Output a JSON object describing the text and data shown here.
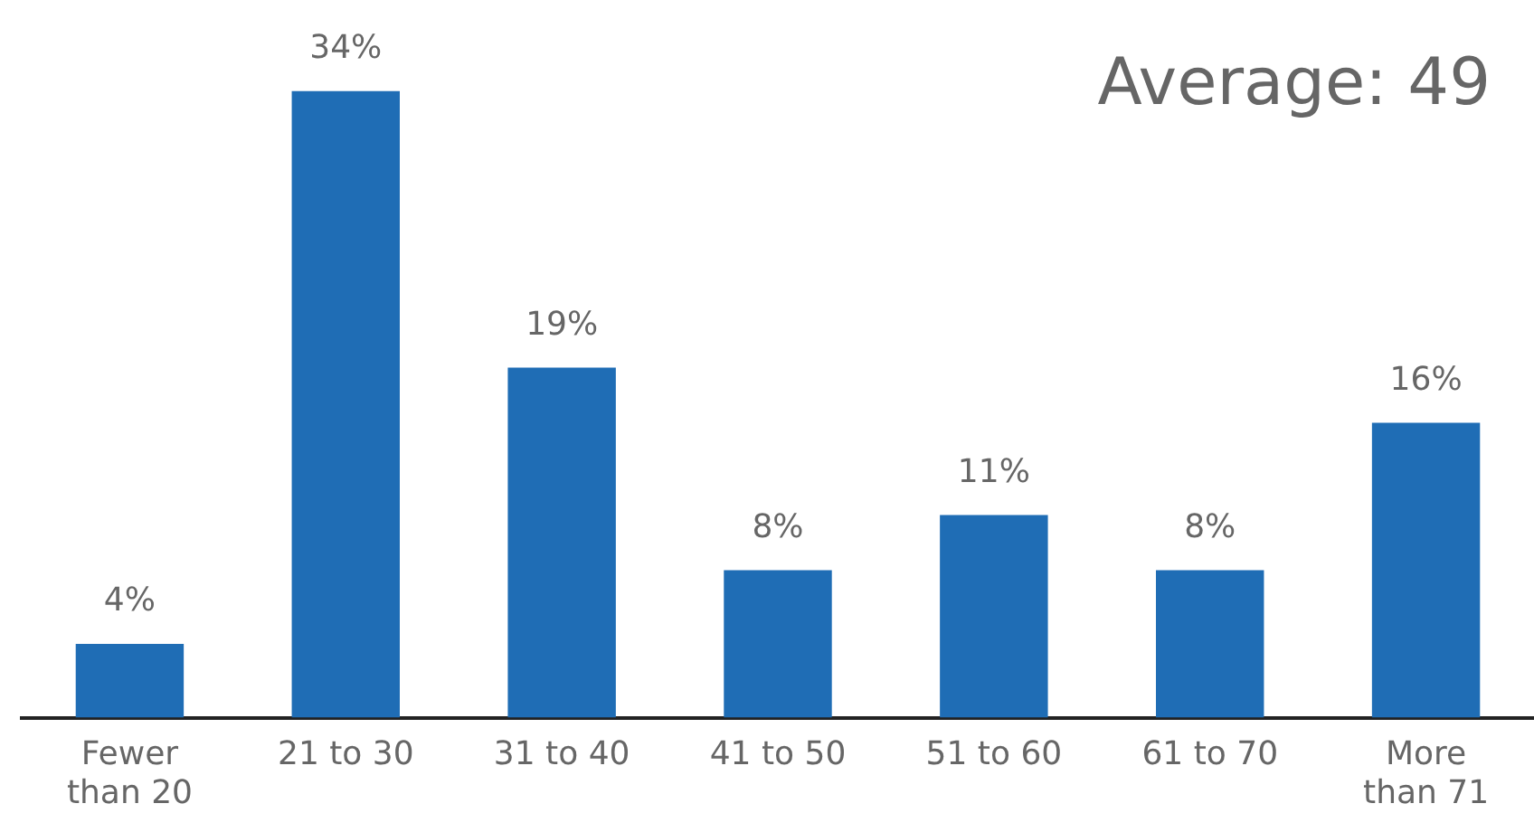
{
  "chart_data": {
    "type": "bar",
    "categories": [
      "Fewer than 20",
      "21 to 30",
      "31 to 40",
      "41 to 50",
      "51 to 60",
      "61 to 70",
      "More than 71"
    ],
    "values": [
      4,
      34,
      19,
      8,
      11,
      8,
      16
    ],
    "value_labels": [
      "4%",
      "34%",
      "19%",
      "8%",
      "11%",
      "8%",
      "16%"
    ],
    "color": "#1f6db5",
    "annotations": [
      "Average: 49"
    ],
    "grid": false,
    "legend": false
  }
}
